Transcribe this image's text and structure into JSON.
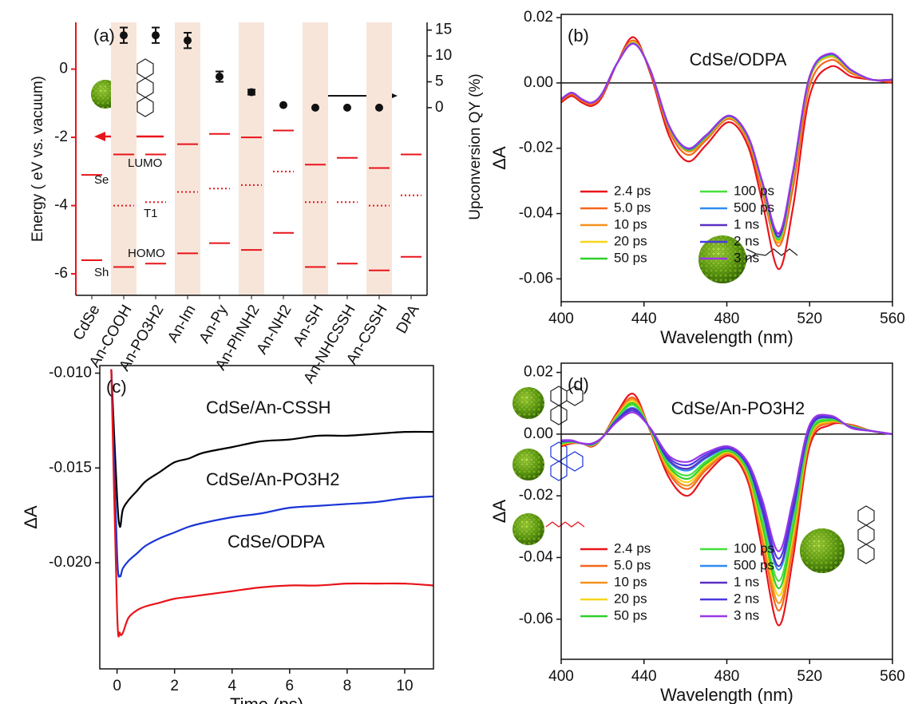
{
  "chart_data": [
    {
      "type": "levels",
      "categories": [
        "CdSe",
        "An-COOH",
        "An-PO3H2",
        "An-Im",
        "An-Py",
        "An-PhNH2",
        "An-NH2",
        "An-SH",
        "An-NHCSSH",
        "An-CSSH",
        "DPA"
      ],
      "ylabel": "Energy ( eV vs. vacuum)",
      "y2label": "Upconversion QY (%)",
      "panel": "(a)",
      "annotations": [
        "Se",
        "Sh"
      ],
      "ylim": [
        -6.63,
        1.37
      ],
      "yticks": [
        -6,
        -4,
        -2,
        0
      ],
      "y_color": "#e8141a",
      "y2lim": [
        -36.3,
        16.5
      ],
      "y2ticks": [
        0,
        5,
        10,
        15
      ],
      "series": [
        {
          "name": "LUMO",
          "color": "#e8141a",
          "style": "solid",
          "values": [
            -3.1,
            -2.5,
            -2.5,
            -2.2,
            -1.9,
            -2.0,
            -1.8,
            -2.8,
            -2.6,
            -2.9,
            -2.5
          ]
        },
        {
          "name": "T1",
          "color": "#e8141a",
          "style": "dotted",
          "values": [
            null,
            -4.0,
            -3.9,
            -3.6,
            -3.5,
            -3.4,
            -3.0,
            -3.9,
            -3.9,
            -4.0,
            -3.7
          ]
        },
        {
          "name": "HOMO",
          "color": "#e8141a",
          "style": "solid",
          "values": [
            -5.6,
            -5.8,
            -5.7,
            -5.4,
            -5.1,
            -5.3,
            -4.8,
            -5.8,
            -5.7,
            -5.9,
            -5.5
          ]
        },
        {
          "axis": "y2",
          "color": "#111111",
          "values": [
            null,
            14,
            14,
            13,
            6,
            3,
            0.5,
            0,
            0,
            0,
            null
          ],
          "errors": [
            null,
            1.5,
            1.5,
            1.5,
            1,
            0.5,
            null,
            null,
            null,
            null,
            null
          ]
        }
      ]
    },
    {
      "type": "line",
      "panel": "(b)",
      "annotation": "CdSe/ODPA",
      "xlabel": "Wavelength (nm)",
      "ylabel": "ΔA",
      "xlim": [
        400,
        560
      ],
      "xticks": [
        400,
        440,
        480,
        520,
        560
      ],
      "ylim": [
        -0.067,
        0.021
      ],
      "yticks": [
        0.02,
        {
          "value": 0,
          "label": "0.00"
        },
        -0.02,
        -0.04,
        -0.06
      ],
      "zero_line": true,
      "legend": "lower left",
      "x": [
        400,
        405,
        410,
        415,
        420,
        427,
        435,
        443,
        452,
        461,
        470,
        481,
        490,
        497,
        505,
        512,
        520,
        530,
        540,
        550,
        560
      ],
      "series": [
        {
          "name": "2.4 ps",
          "color": "#e8141a",
          "values": [
            -0.006,
            -0.004,
            -0.006,
            -0.007,
            -0.004,
            0.006,
            0.014,
            0.003,
            -0.016,
            -0.024,
            -0.019,
            -0.012,
            -0.019,
            -0.036,
            -0.057,
            -0.038,
            -0.004,
            0.005,
            0.002,
            0.001,
            0
          ]
        },
        {
          "name": "5.0 ps",
          "color": "#f4661c",
          "values": [
            -0.0055,
            -0.0035,
            -0.0055,
            -0.0065,
            -0.0035,
            0.006,
            0.013,
            0.0035,
            -0.0145,
            -0.022,
            -0.0175,
            -0.011,
            -0.0175,
            -0.033,
            -0.05,
            -0.032,
            -0.001,
            0.007,
            0.003,
            0.001,
            0.0005
          ]
        },
        {
          "name": "10 ps",
          "color": "#f5921f",
          "values": [
            -0.005,
            -0.003,
            -0.005,
            -0.006,
            -0.003,
            0.006,
            0.0125,
            0.004,
            -0.0135,
            -0.021,
            -0.017,
            -0.0105,
            -0.017,
            -0.031,
            -0.049,
            -0.029,
            0.001,
            0.008,
            0.0035,
            0.001,
            0.001
          ]
        },
        {
          "name": "20 ps",
          "color": "#f7d51a",
          "values": [
            -0.005,
            -0.003,
            -0.005,
            -0.006,
            -0.003,
            0.006,
            0.0125,
            0.004,
            -0.0135,
            -0.0205,
            -0.0165,
            -0.0105,
            -0.0165,
            -0.031,
            -0.0485,
            -0.0285,
            0.0012,
            0.0082,
            0.0036,
            0.001,
            0.001
          ]
        },
        {
          "name": "50 ps",
          "color": "#2fcf2a",
          "values": [
            -0.005,
            -0.003,
            -0.005,
            -0.006,
            -0.003,
            0.006,
            0.0122,
            0.004,
            -0.0133,
            -0.0205,
            -0.0165,
            -0.0102,
            -0.0165,
            -0.0305,
            -0.048,
            -0.028,
            0.0015,
            0.0085,
            0.0038,
            0.001,
            0.001
          ]
        },
        {
          "name": "100 ps",
          "color": "#45e03a",
          "values": [
            -0.005,
            -0.003,
            -0.005,
            -0.006,
            -0.003,
            0.006,
            0.0122,
            0.004,
            -0.0132,
            -0.0203,
            -0.0163,
            -0.0102,
            -0.0163,
            -0.0305,
            -0.0478,
            -0.0278,
            0.0016,
            0.0086,
            0.0038,
            0.001,
            0.001
          ]
        },
        {
          "name": "500 ps",
          "color": "#2f8cf0",
          "values": [
            -0.005,
            -0.003,
            -0.005,
            -0.006,
            -0.003,
            0.006,
            0.0121,
            0.004,
            -0.0131,
            -0.0202,
            -0.0162,
            -0.0101,
            -0.0162,
            -0.0302,
            -0.0472,
            -0.0275,
            0.0018,
            0.0088,
            0.0039,
            0.001,
            0.001
          ]
        },
        {
          "name": "1 ns",
          "color": "#5a2fc4",
          "values": [
            -0.005,
            -0.003,
            -0.005,
            -0.006,
            -0.003,
            0.006,
            0.012,
            0.004,
            -0.013,
            -0.0201,
            -0.0161,
            -0.0101,
            -0.0161,
            -0.0301,
            -0.047,
            -0.0273,
            0.0019,
            0.0089,
            0.004,
            0.001,
            0.001
          ]
        },
        {
          "name": "2 ns",
          "color": "#4a39e0",
          "values": [
            -0.005,
            -0.003,
            -0.005,
            -0.006,
            -0.003,
            0.006,
            0.012,
            0.004,
            -0.013,
            -0.02,
            -0.016,
            -0.01,
            -0.016,
            -0.03,
            -0.0462,
            -0.0271,
            0.002,
            0.009,
            0.004,
            0.001,
            0.001
          ]
        },
        {
          "name": "3 ns",
          "color": "#9a37e6",
          "values": [
            -0.005,
            -0.003,
            -0.005,
            -0.006,
            -0.003,
            0.006,
            0.012,
            0.004,
            -0.013,
            -0.02,
            -0.016,
            -0.01,
            -0.016,
            -0.03,
            -0.046,
            -0.027,
            0.002,
            0.009,
            0.004,
            0.001,
            0.001
          ]
        }
      ]
    },
    {
      "type": "line",
      "panel": "(c)",
      "xlabel": "Time (ps)",
      "ylabel": "ΔA",
      "xlim": [
        -0.6,
        11
      ],
      "xticks": [
        0,
        2,
        4,
        6,
        8,
        10
      ],
      "ylim": [
        -0.0256,
        -0.0096
      ],
      "yticks": [
        {
          "value": -0.01,
          "label": "-0.010"
        },
        -0.015,
        {
          "value": -0.02,
          "label": "-0.020"
        }
      ],
      "x": [
        -0.2,
        0,
        0.1,
        0.2,
        0.4,
        0.7,
        1,
        1.5,
        2,
        2.5,
        3,
        4,
        5,
        6,
        7,
        8,
        9,
        10,
        11
      ],
      "series": [
        {
          "name": "CdSe/An-CSSH",
          "color": "#000000",
          "values": [
            -0.0098,
            -0.0165,
            -0.0181,
            -0.0172,
            -0.0167,
            -0.0162,
            -0.0157,
            -0.0152,
            -0.0147,
            -0.0145,
            -0.0142,
            -0.0139,
            -0.0136,
            -0.0135,
            -0.0133,
            -0.0133,
            -0.0132,
            -0.0131,
            -0.0131
          ]
        },
        {
          "name": "CdSe/An-PO3H2",
          "color": "#1a35d6",
          "values": [
            -0.0098,
            -0.0195,
            -0.0207,
            -0.0203,
            -0.0199,
            -0.0195,
            -0.0191,
            -0.0187,
            -0.0184,
            -0.0181,
            -0.0179,
            -0.0176,
            -0.0174,
            -0.0171,
            -0.017,
            -0.0169,
            -0.0168,
            -0.0166,
            -0.0165
          ]
        },
        {
          "name": "CdSe/ODPA",
          "color": "#e8141a",
          "values": [
            -0.0098,
            -0.0225,
            -0.0237,
            -0.0237,
            -0.0229,
            -0.0225,
            -0.0223,
            -0.0221,
            -0.0219,
            -0.0218,
            -0.0217,
            -0.0215,
            -0.0213,
            -0.0212,
            -0.0212,
            -0.0211,
            -0.0211,
            -0.0211,
            -0.0212
          ]
        }
      ]
    },
    {
      "type": "line",
      "panel": "(d)",
      "annotation": "CdSe/An-PO3H2",
      "xlabel": "Wavelength (nm)",
      "ylabel": "ΔA",
      "xlim": [
        400,
        560
      ],
      "xticks": [
        400,
        440,
        480,
        520,
        560
      ],
      "ylim": [
        -0.073,
        0.023
      ],
      "yticks": [
        0.02,
        {
          "value": 0,
          "label": "0.00"
        },
        -0.02,
        -0.04,
        -0.06
      ],
      "zero_line": true,
      "legend": "lower left",
      "x": [
        400,
        405,
        410,
        415,
        420,
        427,
        435,
        443,
        452,
        461,
        470,
        481,
        490,
        497,
        505,
        512,
        520,
        530,
        540,
        550,
        560
      ],
      "series": [
        {
          "name": "2.4 ps",
          "color": "#e8141a",
          "values": [
            -0.004,
            -0.003,
            -0.003,
            -0.004,
            -0.001,
            0.007,
            0.013,
            0.001,
            -0.014,
            -0.02,
            -0.013,
            -0.007,
            -0.015,
            -0.037,
            -0.062,
            -0.04,
            -0.004,
            0.003,
            0.003,
            0.001,
            0
          ]
        },
        {
          "name": "5.0 ps",
          "color": "#f4661c",
          "values": [
            -0.0036,
            -0.0028,
            -0.003,
            -0.0038,
            -0.001,
            0.0064,
            0.0118,
            0.0012,
            -0.0126,
            -0.0178,
            -0.0116,
            -0.0064,
            -0.0138,
            -0.0338,
            -0.0572,
            -0.0362,
            -0.0026,
            0.0036,
            0.0028,
            0.001,
            0
          ]
        },
        {
          "name": "10 ps",
          "color": "#f5921f",
          "values": [
            -0.0034,
            -0.0027,
            -0.003,
            -0.0037,
            -0.001,
            0.0061,
            0.0112,
            0.0013,
            -0.0119,
            -0.0167,
            -0.0109,
            -0.0061,
            -0.0132,
            -0.0322,
            -0.0548,
            -0.0343,
            -0.0019,
            0.0039,
            0.0027,
            0.001,
            0
          ]
        },
        {
          "name": "20 ps",
          "color": "#f7d51a",
          "values": [
            -0.0032,
            -0.0026,
            -0.003,
            -0.0036,
            -0.001,
            0.0058,
            0.0106,
            0.0014,
            -0.0112,
            -0.0156,
            -0.0102,
            -0.0058,
            -0.0126,
            -0.0306,
            -0.0524,
            -0.0324,
            -0.0012,
            0.0042,
            0.0026,
            0.001,
            0
          ]
        },
        {
          "name": "50 ps",
          "color": "#2fcf2a",
          "values": [
            -0.003,
            -0.0025,
            -0.003,
            -0.0035,
            -0.001,
            0.0055,
            0.01,
            0.0015,
            -0.0105,
            -0.0145,
            -0.0095,
            -0.0055,
            -0.012,
            -0.029,
            -0.05,
            -0.0305,
            -0.0005,
            0.0045,
            0.0025,
            0.001,
            0
          ]
        },
        {
          "name": "100 ps",
          "color": "#45e03a",
          "values": [
            -0.0028,
            -0.0024,
            -0.003,
            -0.0034,
            -0.001,
            0.0052,
            0.0094,
            0.0016,
            -0.0098,
            -0.0134,
            -0.0088,
            -0.0052,
            -0.0114,
            -0.0274,
            -0.0476,
            -0.0286,
            0.0002,
            0.0048,
            0.0024,
            0.001,
            0
          ]
        },
        {
          "name": "500 ps",
          "color": "#2f8cf0",
          "values": [
            -0.0025,
            -0.0023,
            -0.003,
            -0.0033,
            -0.001,
            0.0048,
            0.0085,
            0.0018,
            -0.0088,
            -0.0118,
            -0.0078,
            -0.0048,
            -0.0105,
            -0.025,
            -0.044,
            -0.0258,
            0.0013,
            0.0053,
            0.0023,
            0.001,
            0
          ]
        },
        {
          "name": "1 ns",
          "color": "#5a2fc4",
          "values": [
            -0.0024,
            -0.0022,
            -0.003,
            -0.0032,
            -0.001,
            0.0046,
            0.0082,
            0.0018,
            -0.0084,
            -0.0112,
            -0.0074,
            -0.0046,
            -0.0102,
            -0.0242,
            -0.0428,
            -0.0248,
            0.0016,
            0.0054,
            0.0022,
            0.001,
            0
          ]
        },
        {
          "name": "2 ns",
          "color": "#4a39e0",
          "values": [
            -0.0022,
            -0.0021,
            -0.003,
            -0.0031,
            -0.001,
            0.0043,
            0.0076,
            0.0019,
            -0.0077,
            -0.0101,
            -0.0067,
            -0.0043,
            -0.0096,
            -0.0226,
            -0.0404,
            -0.0229,
            0.0023,
            0.0057,
            0.0021,
            0.001,
            0
          ]
        },
        {
          "name": "3 ns",
          "color": "#9a37e6",
          "values": [
            -0.002,
            -0.002,
            -0.003,
            -0.003,
            -0.001,
            0.004,
            0.007,
            0.002,
            -0.007,
            -0.009,
            -0.006,
            -0.004,
            -0.009,
            -0.021,
            -0.038,
            -0.021,
            0.003,
            0.006,
            0.002,
            0.001,
            0
          ]
        }
      ]
    }
  ]
}
